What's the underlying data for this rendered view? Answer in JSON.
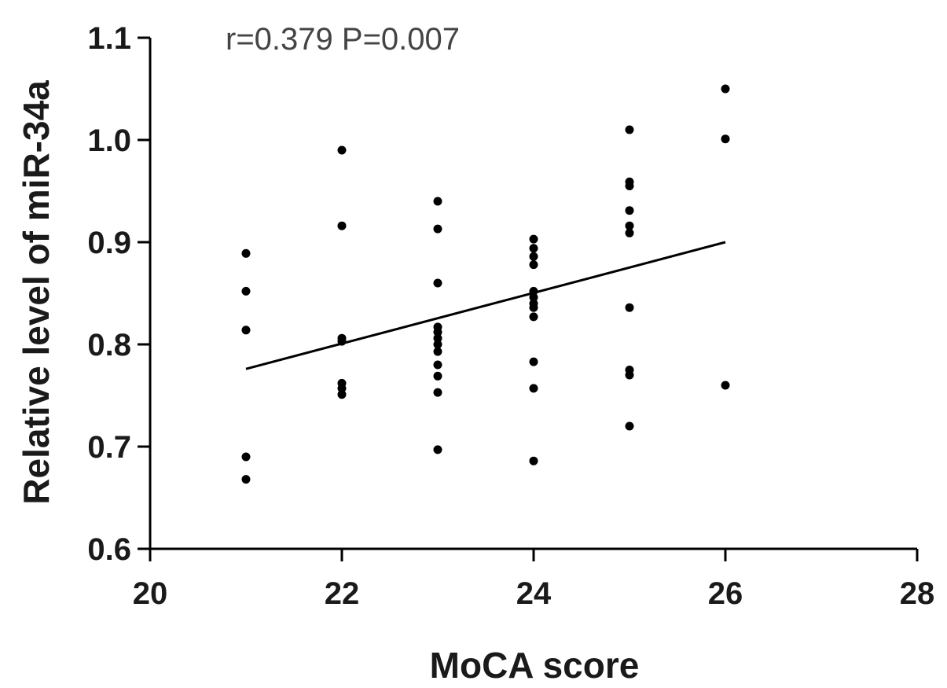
{
  "chart_data": {
    "type": "scatter",
    "title": "",
    "annotation": "r=0.379 P=0.007",
    "xlabel": "MoCA score",
    "ylabel": "Relative level of miR-34a",
    "xlim": [
      20,
      28
    ],
    "ylim": [
      0.6,
      1.1
    ],
    "xticks": [
      "20",
      "22",
      "24",
      "26",
      "28"
    ],
    "yticks": [
      "0.6",
      "0.7",
      "0.8",
      "0.9",
      "1.0",
      "1.1"
    ],
    "grid": false,
    "points": [
      {
        "x": 21,
        "y": 0.889
      },
      {
        "x": 21,
        "y": 0.852
      },
      {
        "x": 21,
        "y": 0.814
      },
      {
        "x": 21,
        "y": 0.69
      },
      {
        "x": 21,
        "y": 0.668
      },
      {
        "x": 22,
        "y": 0.99
      },
      {
        "x": 22,
        "y": 0.916
      },
      {
        "x": 22,
        "y": 0.806
      },
      {
        "x": 22,
        "y": 0.803
      },
      {
        "x": 22,
        "y": 0.762
      },
      {
        "x": 22,
        "y": 0.757
      },
      {
        "x": 22,
        "y": 0.751
      },
      {
        "x": 23,
        "y": 0.94
      },
      {
        "x": 23,
        "y": 0.913
      },
      {
        "x": 23,
        "y": 0.86
      },
      {
        "x": 23,
        "y": 0.817
      },
      {
        "x": 23,
        "y": 0.812
      },
      {
        "x": 23,
        "y": 0.806
      },
      {
        "x": 23,
        "y": 0.8
      },
      {
        "x": 23,
        "y": 0.793
      },
      {
        "x": 23,
        "y": 0.78
      },
      {
        "x": 23,
        "y": 0.769
      },
      {
        "x": 23,
        "y": 0.753
      },
      {
        "x": 23,
        "y": 0.697
      },
      {
        "x": 24,
        "y": 0.903
      },
      {
        "x": 24,
        "y": 0.894
      },
      {
        "x": 24,
        "y": 0.886
      },
      {
        "x": 24,
        "y": 0.878
      },
      {
        "x": 24,
        "y": 0.852
      },
      {
        "x": 24,
        "y": 0.846
      },
      {
        "x": 24,
        "y": 0.84
      },
      {
        "x": 24,
        "y": 0.836
      },
      {
        "x": 24,
        "y": 0.827
      },
      {
        "x": 24,
        "y": 0.783
      },
      {
        "x": 24,
        "y": 0.757
      },
      {
        "x": 24,
        "y": 0.686
      },
      {
        "x": 25,
        "y": 1.01
      },
      {
        "x": 25,
        "y": 0.959
      },
      {
        "x": 25,
        "y": 0.955
      },
      {
        "x": 25,
        "y": 0.931
      },
      {
        "x": 25,
        "y": 0.916
      },
      {
        "x": 25,
        "y": 0.909
      },
      {
        "x": 25,
        "y": 0.836
      },
      {
        "x": 25,
        "y": 0.775
      },
      {
        "x": 25,
        "y": 0.77
      },
      {
        "x": 25,
        "y": 0.72
      },
      {
        "x": 26,
        "y": 1.05
      },
      {
        "x": 26,
        "y": 1.001
      },
      {
        "x": 26,
        "y": 0.76
      }
    ],
    "regression_line": {
      "x": [
        21,
        26
      ],
      "y": [
        0.776,
        0.9
      ]
    }
  }
}
